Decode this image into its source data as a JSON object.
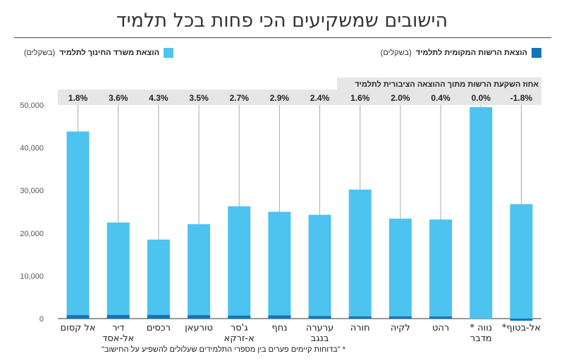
{
  "title": "הישובים שמשקיעים הכי פחות בכל תלמיד",
  "legend": {
    "ministry": {
      "label": "הוצאת משרד החינוך לתלמיד",
      "note": "(בשקלים)",
      "color": "#4dc3f0"
    },
    "local": {
      "label": "הוצאת הרשות המקומית לתלמיד",
      "note": "(בשקלים)",
      "color": "#1474b8"
    }
  },
  "footnote": "* \"בדוחות קיימים פערים בין מספרי התלמידים שעלולים להשפיע על החישוב\"",
  "chart_data": {
    "type": "bar",
    "stacked": true,
    "title": "הישובים שמשקיעים הכי פחות בכל תלמיד",
    "pct_header": "אחוז השקעת הרשות מתוך ההוצאה הציבורית לתלמיד",
    "ylim": [
      0,
      50000
    ],
    "yticks": [
      "0",
      "10,000",
      "20,000",
      "30,000",
      "40,000",
      "50,000"
    ],
    "ytick_values": [
      0,
      10000,
      20000,
      30000,
      40000,
      50000
    ],
    "grid": false,
    "legend_position": "top",
    "categories": [
      [
        "אל-בטוף*"
      ],
      [
        "נווה *",
        "מדבר"
      ],
      [
        "רהט"
      ],
      [
        "לקיה"
      ],
      [
        "חורה"
      ],
      [
        "ערערה",
        "בנגב"
      ],
      [
        "נחף"
      ],
      [
        "ג'סר",
        "א-זרקא"
      ],
      [
        "טורעאן"
      ],
      [
        "רכסים"
      ],
      [
        "דיר",
        "אל-אסד"
      ],
      [
        "אל קסום"
      ]
    ],
    "percent_labels": [
      "-1.8%",
      "0.0%",
      "0.4%",
      "2.0%",
      "1.6%",
      "2.4%",
      "2.9%",
      "2.7%",
      "3.5%",
      "4.3%",
      "3.6%",
      "1.8%"
    ],
    "series": [
      {
        "name": "הוצאת משרד החינוך לתלמיד",
        "color": "#4dc3f0",
        "values": [
          26800,
          49500,
          23200,
          23400,
          30200,
          24300,
          25000,
          26300,
          22100,
          18500,
          22500,
          43800
        ]
      },
      {
        "name": "הוצאת הרשות המקומית לתלמיד",
        "color": "#1474b8",
        "values": [
          -450,
          0,
          100,
          500,
          500,
          600,
          750,
          700,
          800,
          850,
          850,
          800
        ]
      }
    ]
  }
}
